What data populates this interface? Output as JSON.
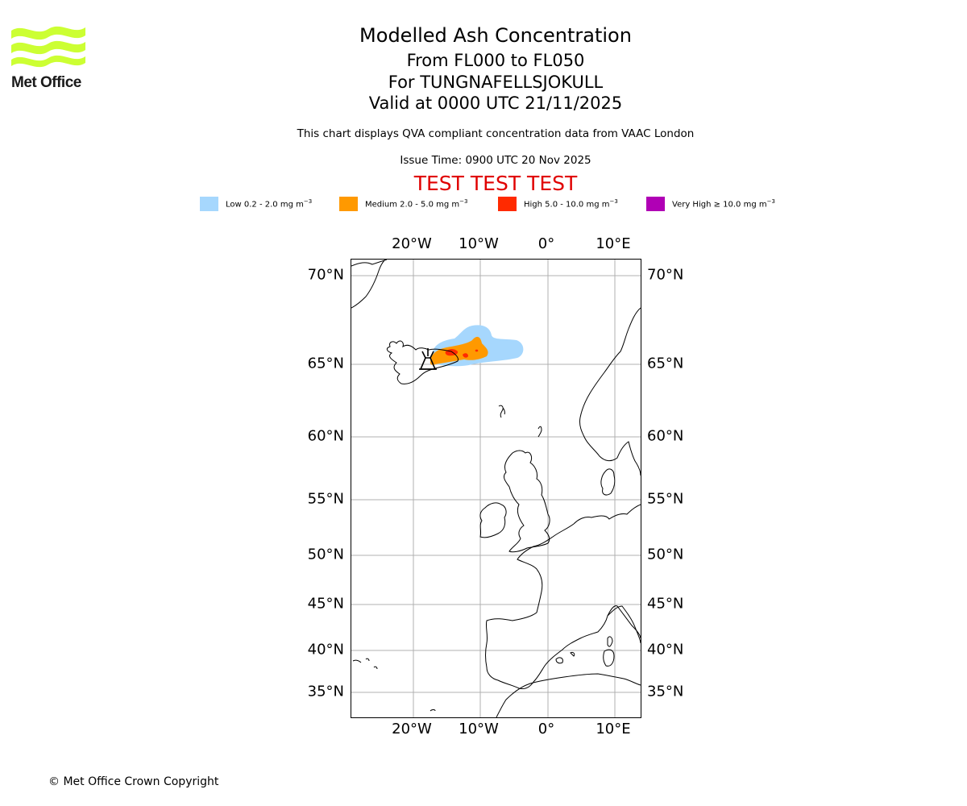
{
  "logo": {
    "text": "Met Office",
    "color": "#ccff33"
  },
  "title": {
    "main": "Modelled Ash Concentration",
    "levels": "From FL000 to FL050",
    "volcano": "For TUNGNAFELLSJOKULL",
    "valid": "Valid at 0000 UTC 21/11/2025"
  },
  "subtitle": "This chart displays QVA compliant concentration data from VAAC London",
  "issue_time": "Issue Time: 0900 UTC 20 Nov 2025",
  "test_banner": "TEST TEST TEST",
  "legend": [
    {
      "label": "Low 0.2 - 2.0 mg m",
      "unit_exp": "−3",
      "color": "#a6d7fd"
    },
    {
      "label": "Medium 2.0 - 5.0 mg m",
      "unit_exp": "−3",
      "color": "#ff9900"
    },
    {
      "label": "High 5.0 - 10.0 mg m",
      "unit_exp": "−3",
      "color": "#ff2a00"
    },
    {
      "label": "Very High  ≥  10.0 mg m",
      "unit_exp": "−3",
      "color": "#b000b5"
    }
  ],
  "map": {
    "lon_labels": [
      "20°W",
      "10°W",
      "0°",
      "10°E"
    ],
    "lat_labels": [
      "70°N",
      "65°N",
      "60°N",
      "55°N",
      "50°N",
      "45°N",
      "40°N",
      "35°N"
    ],
    "volcano_marker": "volcano-icon"
  },
  "copyright": "© Met Office Crown Copyright"
}
